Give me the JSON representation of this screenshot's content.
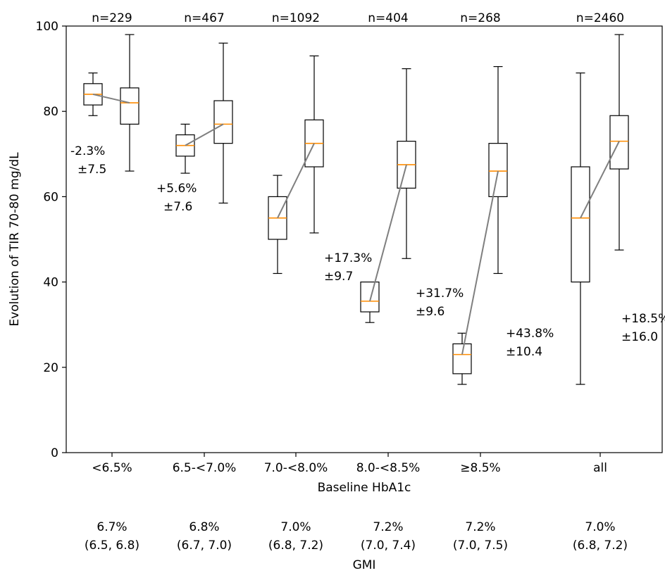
{
  "chart_data": {
    "type": "box",
    "ylabel": "Evolution of TIR 70-80 mg/dL",
    "xlabel": "Baseline HbA1c",
    "ylim": [
      0,
      100
    ],
    "yticks": [
      "0",
      "20",
      "40",
      "60",
      "80",
      "100"
    ],
    "gmi_label": "GMI",
    "groups": [
      {
        "category": "<6.5%",
        "n": "n=229",
        "baseline": {
          "whislo": 79,
          "q1": 81.5,
          "med": 84,
          "q3": 86.5,
          "whishi": 89
        },
        "followup": {
          "whislo": 66,
          "q1": 77,
          "med": 82,
          "q3": 85.5,
          "whishi": 98
        },
        "change": "-2.3%",
        "sd": "±7.5",
        "gmi": "6.7%",
        "gmi_ci": "(6.5, 6.8)"
      },
      {
        "category": "6.5-<7.0%",
        "n": "n=467",
        "baseline": {
          "whislo": 65.5,
          "q1": 69.5,
          "med": 72,
          "q3": 74.5,
          "whishi": 77
        },
        "followup": {
          "whislo": 58.5,
          "q1": 72.5,
          "med": 77,
          "q3": 82.5,
          "whishi": 96
        },
        "change": "+5.6%",
        "sd": "±7.6",
        "gmi": "6.8%",
        "gmi_ci": "(6.7, 7.0)"
      },
      {
        "category": "7.0-<8.0%",
        "n": "n=1092",
        "baseline": {
          "whislo": 42,
          "q1": 50,
          "med": 55,
          "q3": 60,
          "whishi": 65
        },
        "followup": {
          "whislo": 51.5,
          "q1": 67,
          "med": 72.5,
          "q3": 78,
          "whishi": 93
        },
        "change": "+17.3%",
        "sd": "±9.7",
        "gmi": "7.0%",
        "gmi_ci": "(6.8, 7.2)"
      },
      {
        "category": "8.0-<8.5%",
        "n": "n=404",
        "baseline": {
          "whislo": 30.5,
          "q1": 33,
          "med": 35.5,
          "q3": 40,
          "whishi": 40
        },
        "followup": {
          "whislo": 45.5,
          "q1": 62,
          "med": 67.5,
          "q3": 73,
          "whishi": 90
        },
        "change": "+31.7%",
        "sd": "±9.6",
        "gmi": "7.2%",
        "gmi_ci": "(7.0, 7.4)"
      },
      {
        "category": "≥8.5%",
        "n": "n=268",
        "baseline": {
          "whislo": 16,
          "q1": 18.5,
          "med": 23,
          "q3": 25.5,
          "whishi": 28
        },
        "followup": {
          "whislo": 42,
          "q1": 60,
          "med": 66,
          "q3": 72.5,
          "whishi": 90.5
        },
        "change": "+43.8%",
        "sd": "±10.4",
        "gmi": "7.2%",
        "gmi_ci": "(7.0, 7.5)"
      },
      {
        "category": "all",
        "n": "n=2460",
        "baseline": {
          "whislo": 16,
          "q1": 40,
          "med": 55,
          "q3": 67,
          "whishi": 89
        },
        "followup": {
          "whislo": 47.5,
          "q1": 66.5,
          "med": 73,
          "q3": 79,
          "whishi": 98
        },
        "change": "+18.5%",
        "sd": "±16.0",
        "gmi": "7.0%",
        "gmi_ci": "(6.8, 7.2)"
      }
    ],
    "colors": {
      "box": "#000000",
      "median": "#ff8c00",
      "connector": "#7f7f7f"
    }
  }
}
